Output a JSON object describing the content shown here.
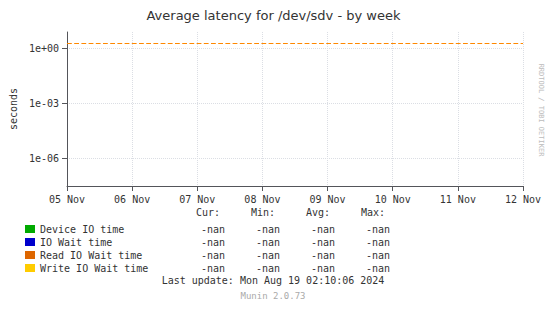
{
  "chart_data": {
    "type": "line",
    "title": "Average latency for /dev/sdv - by week",
    "ylabel": "seconds",
    "categories": [
      "05 Nov",
      "06 Nov",
      "07 Nov",
      "08 Nov",
      "09 Nov",
      "10 Nov",
      "11 Nov",
      "12 Nov"
    ],
    "series": [
      {
        "name": "Device IO time",
        "color": "#00aa00",
        "values": [
          null,
          null,
          null,
          null,
          null,
          null,
          null,
          null
        ],
        "stats": [
          "-nan",
          "-nan",
          "-nan",
          "-nan"
        ]
      },
      {
        "name": "IO Wait time",
        "color": "#0000cc",
        "values": [
          null,
          null,
          null,
          null,
          null,
          null,
          null,
          null
        ],
        "stats": [
          "-nan",
          "-nan",
          "-nan",
          "-nan"
        ]
      },
      {
        "name": "Read IO Wait time",
        "color": "#dd6600",
        "values": [
          null,
          null,
          null,
          null,
          null,
          null,
          null,
          null
        ],
        "stats": [
          "-nan",
          "-nan",
          "-nan",
          "-nan"
        ]
      },
      {
        "name": "Write IO Wait time",
        "color": "#ffcc00",
        "values": [
          null,
          null,
          null,
          null,
          null,
          null,
          null,
          null
        ],
        "stats": [
          "-nan",
          "-nan",
          "-nan",
          "-nan"
        ]
      }
    ],
    "stat_columns": [
      "Cur:",
      "Min:",
      "Avg:",
      "Max:"
    ],
    "log": "y",
    "ylim": [
      3e-08,
      8.0
    ],
    "yticks": [
      {
        "value": 1e-06,
        "label": "1e-06"
      },
      {
        "value": 0.001,
        "label": "1e-03"
      },
      {
        "value": 1,
        "label": "1e+00"
      }
    ],
    "reference_lines": [
      {
        "y": 2.0,
        "color": "#ff8800",
        "line_style": "dashed"
      }
    ],
    "grid": true,
    "annotations": [
      "RRDTOOL / TOBI OETIKER",
      "Last update: Mon Aug 19 02:10:06 2024",
      "Munin 2.0.73"
    ]
  }
}
